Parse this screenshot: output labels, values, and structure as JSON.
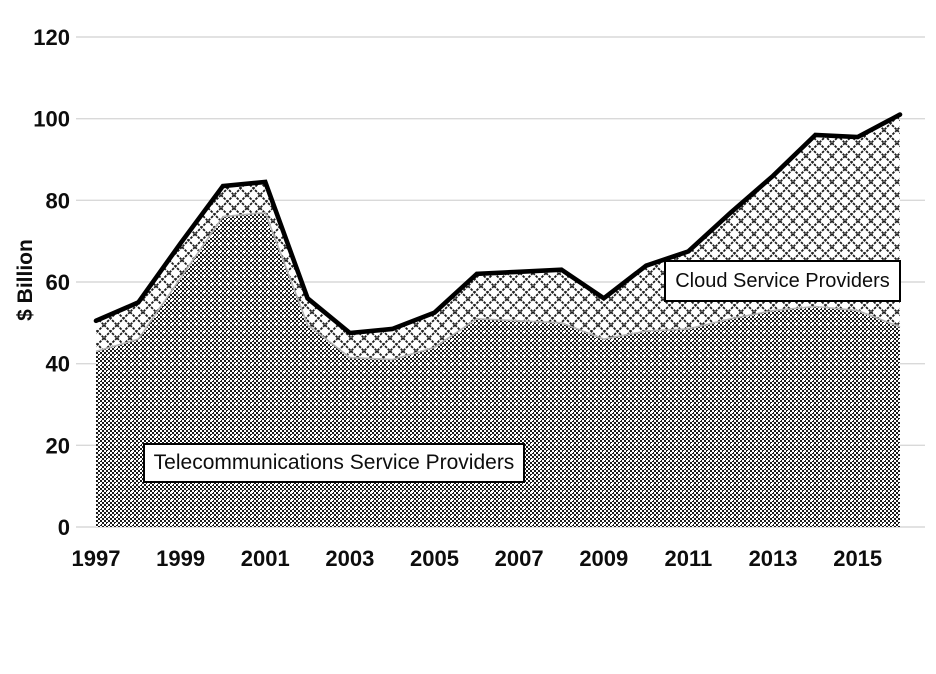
{
  "chart_data": {
    "type": "area",
    "stacked": true,
    "ylabel": "$ Billion",
    "ylim": [
      0,
      120
    ],
    "ytick_step": 20,
    "grid": "horizontal",
    "legend_position": "in-plot-label-boxes",
    "x": [
      1997,
      1998,
      1999,
      2000,
      2001,
      2002,
      2003,
      2004,
      2005,
      2006,
      2007,
      2008,
      2009,
      2010,
      2011,
      2012,
      2013,
      2014,
      2015,
      2016
    ],
    "xtick_labels": [
      "1997",
      "1999",
      "2001",
      "2003",
      "2005",
      "2007",
      "2009",
      "2011",
      "2013",
      "2015"
    ],
    "series": [
      {
        "name": "Telecommunications Service Providers",
        "fill_pattern": "dense-dot-grid",
        "values": [
          43,
          46,
          61,
          76,
          77,
          49.5,
          41.5,
          41,
          44,
          51,
          50.5,
          50,
          46,
          48,
          48.5,
          51,
          53,
          54,
          53,
          49
        ]
      },
      {
        "name": "Cloud Service Providers",
        "fill_pattern": "diamond-crosshatch",
        "values": [
          7.5,
          9,
          8.5,
          7.5,
          7.5,
          6.5,
          6,
          7.5,
          8.5,
          11,
          12,
          13,
          10,
          16,
          19,
          26,
          33,
          42,
          42.5,
          52
        ]
      }
    ],
    "stacked_totals": [
      50.5,
      55,
      69.5,
      83.5,
      84.5,
      56,
      47.5,
      48.5,
      52.5,
      62,
      62.5,
      63,
      56,
      64,
      67.5,
      77,
      86,
      96,
      95.5,
      101
    ],
    "total_line": {
      "color": "#000000",
      "width": 4.6
    },
    "colors": {
      "background": "#ffffff",
      "gridline": "#d9d9d9",
      "pattern_ink": "#1a1a1a",
      "series_boundary": "#b3b3b3",
      "text": "#0d0d0d"
    }
  }
}
